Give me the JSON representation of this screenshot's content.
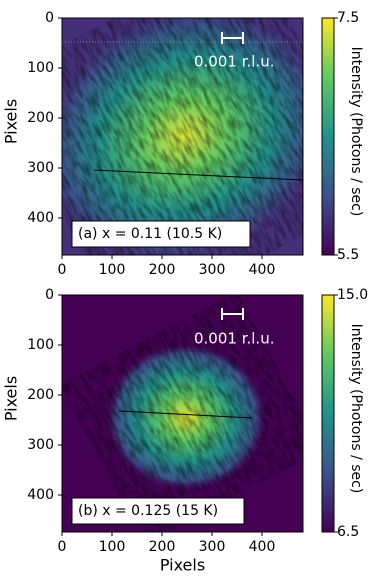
{
  "chart_data": [
    {
      "type": "image",
      "annotation": "(a) x = 0.11 (10.5 K)",
      "scale_label": "0.001 r.l.u.",
      "ylabel": "Pixels",
      "xlim": [
        0,
        482
      ],
      "ylim": [
        0,
        474
      ],
      "xticks": [
        0,
        100,
        200,
        300,
        400
      ],
      "yticks": [
        0,
        100,
        200,
        300,
        400
      ],
      "colorbar": {
        "label": "Intensity (Photons / sec)",
        "lim": [
          5.5,
          7.5
        ],
        "ticks": [
          5.5,
          7.5
        ]
      }
    },
    {
      "type": "image",
      "annotation": "(b) x = 0.125 (15 K)",
      "scale_label": "0.001 r.l.u.",
      "xlabel": "Pixels",
      "ylabel": "Pixels",
      "xlim": [
        0,
        482
      ],
      "ylim": [
        0,
        474
      ],
      "xticks": [
        0,
        100,
        200,
        300,
        400
      ],
      "yticks": [
        0,
        100,
        200,
        300,
        400
      ],
      "colorbar": {
        "label": "Intensity (Photons / sec)",
        "lim": [
          6.5,
          15
        ],
        "ticks": [
          6.5,
          {
            "value": 15,
            "label": "15.0"
          }
        ]
      }
    }
  ]
}
